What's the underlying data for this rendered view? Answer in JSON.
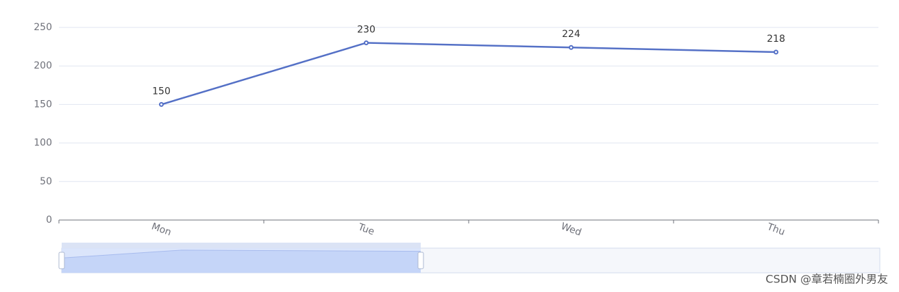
{
  "chart_data": {
    "type": "line",
    "categories": [
      "Mon",
      "Tue",
      "Wed",
      "Thu"
    ],
    "values": [
      150,
      230,
      224,
      218
    ],
    "color": "#5470c6",
    "ylim": [
      0,
      250
    ],
    "yticks": [
      0,
      50,
      100,
      150,
      200,
      250
    ],
    "grid": true
  },
  "watermark": "CSDN @章若楠圈外男友"
}
